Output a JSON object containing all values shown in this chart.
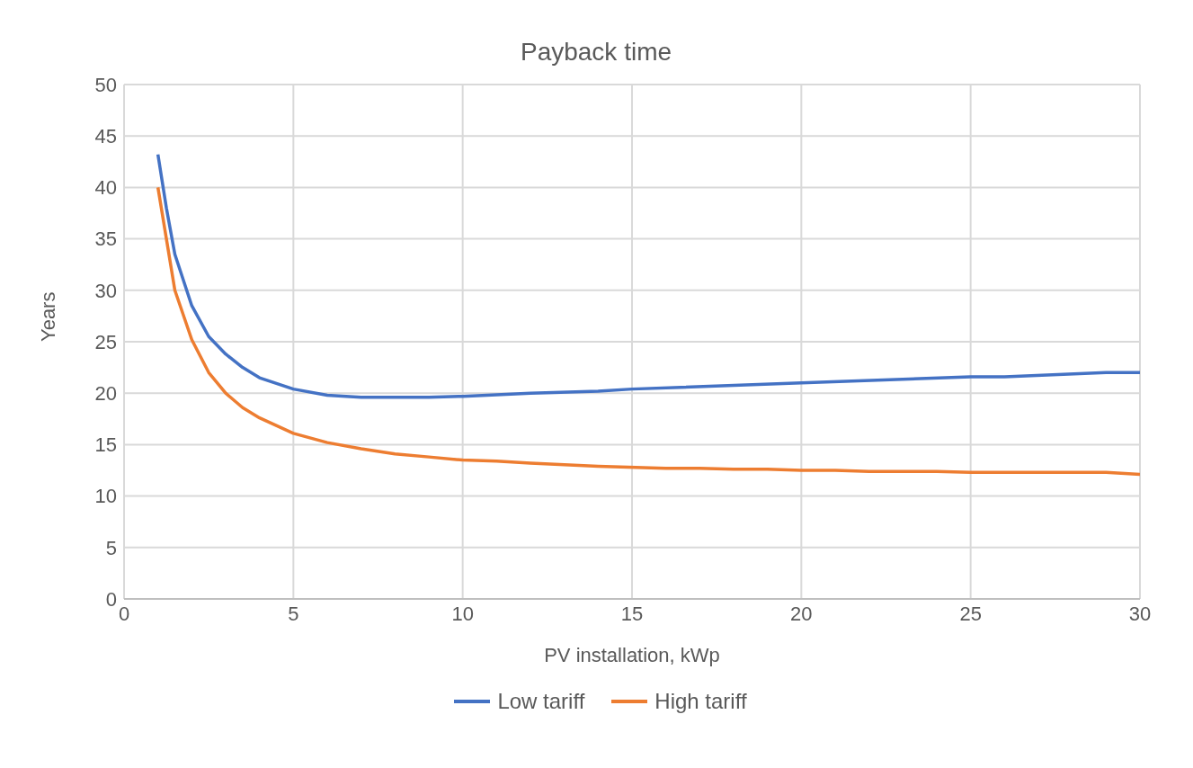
{
  "chart_data": {
    "type": "line",
    "title": "Payback time",
    "xlabel": "PV installation, kWp",
    "ylabel": "Years",
    "xlim": [
      0,
      30
    ],
    "xticks": [
      0,
      5,
      10,
      15,
      20,
      25,
      30
    ],
    "ylim": [
      0,
      50
    ],
    "yticks": [
      0,
      5,
      10,
      15,
      20,
      25,
      30,
      35,
      40,
      45,
      50
    ],
    "grid": true,
    "legend": "bottom",
    "marker": "none",
    "line_style": "solid",
    "series": [
      {
        "name": "Low tariff",
        "color": "#4472c4",
        "x": [
          1,
          1.25,
          1.5,
          2,
          2.5,
          3,
          3.5,
          4,
          5,
          6,
          7,
          8,
          9,
          10,
          12,
          14,
          15,
          20,
          25,
          26,
          29,
          30
        ],
        "values": [
          43.2,
          38,
          33.5,
          28.5,
          25.5,
          23.8,
          22.5,
          21.5,
          20.4,
          19.8,
          19.6,
          19.6,
          19.6,
          19.7,
          20,
          20.2,
          20.4,
          21,
          21.6,
          21.6,
          22,
          22
        ]
      },
      {
        "name": "High tariff",
        "color": "#ed7d31",
        "x": [
          1,
          1.25,
          1.5,
          2,
          2.5,
          3,
          3.5,
          4,
          5,
          6,
          7,
          8,
          9,
          10,
          11,
          12,
          14,
          16,
          17,
          18,
          19,
          20,
          21,
          22,
          24,
          25,
          29,
          30
        ],
        "values": [
          40,
          35,
          30,
          25.2,
          22,
          20,
          18.6,
          17.6,
          16.1,
          15.2,
          14.6,
          14.1,
          13.8,
          13.5,
          13.4,
          13.2,
          12.9,
          12.7,
          12.7,
          12.6,
          12.6,
          12.5,
          12.5,
          12.4,
          12.4,
          12.3,
          12.3,
          12.1
        ]
      }
    ]
  }
}
